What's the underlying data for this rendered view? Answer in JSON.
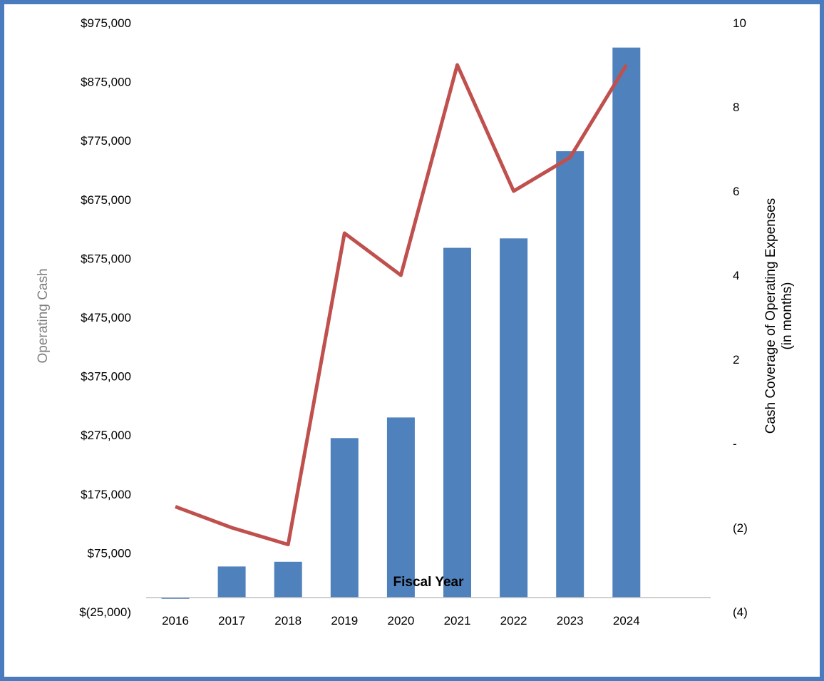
{
  "colors": {
    "bars": "#4f81bd",
    "line": "#c0504d",
    "frame": "#4a7bbf",
    "axis": "#bfbfbf"
  },
  "chart_data": {
    "type": "bar",
    "title": "",
    "xlabel": "Fiscal Year",
    "ylabel": "Operating Cash",
    "y2label_line1": "Cash Coverage of Operating Expenses",
    "y2label_line2": "(in months)",
    "categories": [
      "2016",
      "2017",
      "2018",
      "2019",
      "2020",
      "2021",
      "2022",
      "2023",
      "2024"
    ],
    "series": [
      {
        "type": "bar",
        "axis": "left",
        "values": [
          -3000,
          52000,
          60000,
          270000,
          305000,
          593000,
          609000,
          757000,
          933000
        ]
      },
      {
        "type": "line",
        "axis": "right",
        "values": [
          -1.5,
          -2.0,
          -2.4,
          5.0,
          4.0,
          9.0,
          6.0,
          6.8,
          9.0
        ]
      }
    ],
    "ylim": [
      -25000,
      975000
    ],
    "yticks": [
      -25000,
      75000,
      175000,
      275000,
      375000,
      475000,
      575000,
      675000,
      775000,
      875000,
      975000
    ],
    "yticklabels": [
      "$(25,000)",
      "$75,000",
      "$175,000",
      "$275,000",
      "$375,000",
      "$475,000",
      "$575,000",
      "$675,000",
      "$775,000",
      "$875,000",
      "$975,000"
    ],
    "y2lim": [
      -4,
      10
    ],
    "y2ticks": [
      -4,
      -2,
      0,
      2,
      4,
      6,
      8,
      10
    ],
    "y2ticklabels": [
      "(4)",
      "(2)",
      "-",
      "2",
      "4",
      "6",
      "8",
      "10"
    ],
    "grid": false,
    "legend": "none"
  }
}
